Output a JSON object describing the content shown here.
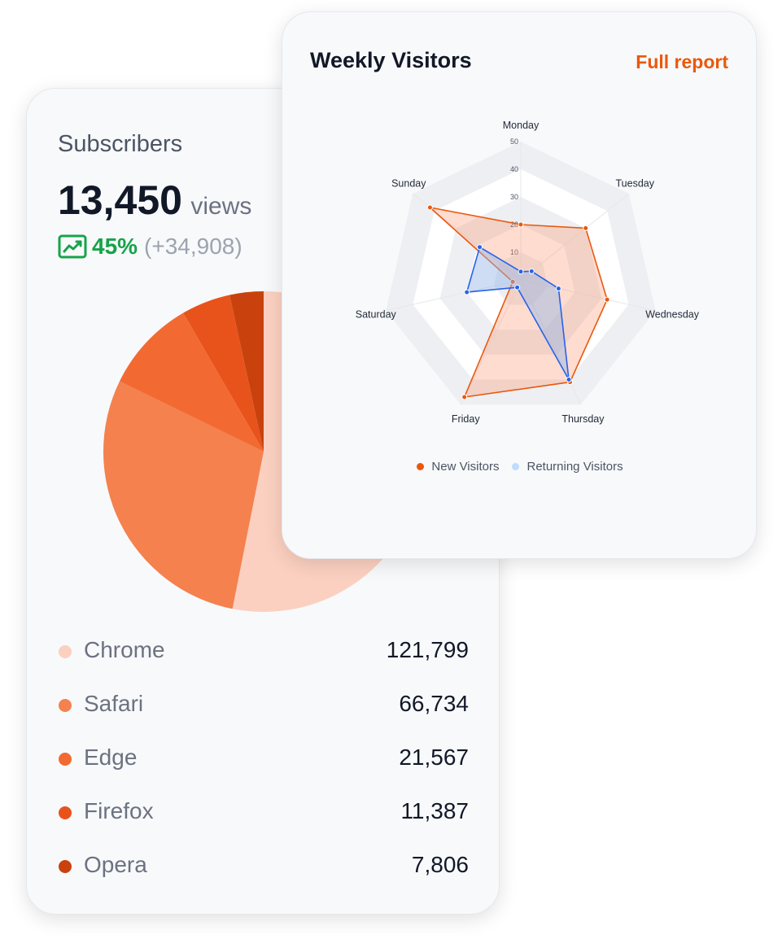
{
  "subscribers": {
    "title": "Subscribers",
    "total": "13,450",
    "unit": "views",
    "change_pct": "45%",
    "change_abs": "(+34,908)",
    "trend_icon": "trend-up-icon",
    "trend_color": "#16a34a"
  },
  "weekly": {
    "title": "Weekly Visitors",
    "link_label": "Full report",
    "link_color": "#ea580c"
  },
  "chart_data": [
    {
      "type": "pie",
      "categories": [
        "Chrome",
        "Safari",
        "Edge",
        "Firefox",
        "Opera"
      ],
      "values": [
        121799,
        66734,
        21567,
        11387,
        7806
      ],
      "display_values": [
        "121,799",
        "66,734",
        "21,567",
        "11,387",
        "7,806"
      ],
      "colors": [
        "#fbd0c0",
        "#f4814e",
        "#f26a32",
        "#e8531b",
        "#c9420e"
      ],
      "start": "top, clockwise"
    },
    {
      "type": "radar",
      "categories": [
        "Monday",
        "Tuesday",
        "Wednesday",
        "Thursday",
        "Friday",
        "Saturday",
        "Sunday"
      ],
      "rlim": [
        0,
        50
      ],
      "ticks": [
        10,
        20,
        30,
        40,
        50
      ],
      "series": [
        {
          "name": "New Visitors",
          "values": [
            20,
            30,
            32,
            41,
            47,
            3,
            42
          ],
          "color": "#ea580c"
        },
        {
          "name": "Returning Visitors",
          "values": [
            3,
            5,
            14,
            40,
            3,
            20,
            19
          ],
          "color": "#2563eb",
          "legend_color": "#bfdbfe"
        }
      ],
      "legend": "bottom"
    }
  ]
}
